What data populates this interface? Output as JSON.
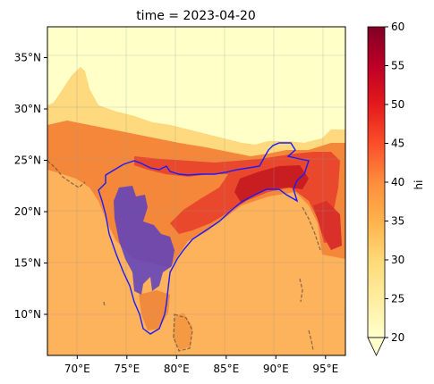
{
  "title": "time = 2023-04-20",
  "map": {
    "lon_range": [
      67,
      97
    ],
    "lat_range": [
      6,
      38
    ],
    "lon_ticks": [
      70,
      75,
      80,
      85,
      90,
      95
    ],
    "lon_tick_labels": [
      "70°E",
      "75°E",
      "80°E",
      "85°E",
      "90°E",
      "95°E"
    ],
    "lat_ticks": [
      10,
      15,
      20,
      25,
      30,
      35
    ],
    "lat_tick_labels": [
      "10°N",
      "15°N",
      "20°N",
      "25°N",
      "30°N",
      "35°N"
    ],
    "gridlines": true
  },
  "colorbar": {
    "label": "hi",
    "colormap": "YlOrRd",
    "range": [
      20,
      60
    ],
    "ticks": [
      20,
      25,
      30,
      35,
      40,
      45,
      50,
      55,
      60
    ],
    "tick_labels": [
      "20",
      "25",
      "30",
      "35",
      "40",
      "45",
      "50",
      "55",
      "60"
    ],
    "extend": "min"
  },
  "overlays": {
    "boundary_color": "#1a1aff",
    "highlight_fill": "#5a3fbf",
    "coastline_style": "dashed"
  },
  "colors": {
    "very_hot": "#c81e22",
    "hot": "#e9482d",
    "warm": "#f5873a",
    "mild": "#fdb25c",
    "cool": "#fed97d",
    "cold": "#ffffc8"
  }
}
